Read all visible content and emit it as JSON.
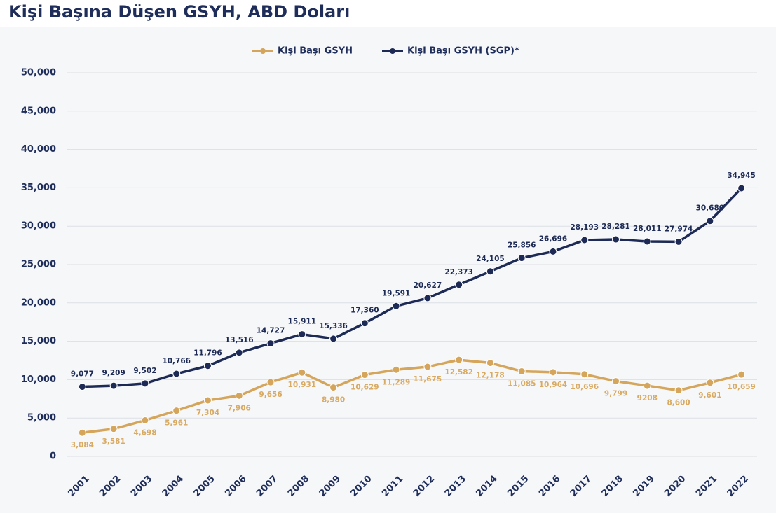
{
  "chart_data": {
    "type": "line",
    "title": "Kişi Başına Düşen GSYH, ABD Doları",
    "categories": [
      "2001",
      "2002",
      "2003",
      "2004",
      "2005",
      "2006",
      "2007",
      "2008",
      "2009",
      "2010",
      "2011",
      "2012",
      "2013",
      "2014",
      "2015",
      "2016",
      "2017",
      "2018",
      "2019",
      "2020",
      "2021",
      "2022"
    ],
    "series": [
      {
        "name": "Kişi Başı GSYH",
        "color": "#d4a55a",
        "values": [
          3084,
          3581,
          4698,
          5961,
          7304,
          7906,
          9656,
          10931,
          8980,
          10629,
          11289,
          11675,
          12582,
          12178,
          11085,
          10964,
          10696,
          9799,
          9208,
          8600,
          9601,
          10659
        ],
        "value_labels": [
          "3,084",
          "3,581",
          "4,698",
          "5,961",
          "7,304",
          "7,906",
          "9,656",
          "10,931",
          "8,980",
          "10,629",
          "11,289",
          "11,675",
          "12,582",
          "12,178",
          "11,085",
          "10,964",
          "10,696",
          "9,799",
          "9208",
          "8,600",
          "9,601",
          "10,659"
        ]
      },
      {
        "name": "Kişi Başı GSYH (SGP)*",
        "color": "#1c2a55",
        "values": [
          9077,
          9209,
          9502,
          10766,
          11796,
          13516,
          14727,
          15911,
          15336,
          17360,
          19591,
          20627,
          22373,
          24105,
          25856,
          26696,
          28193,
          28281,
          28011,
          27974,
          30680,
          34945
        ],
        "value_labels": [
          "9,077",
          "9,209",
          "9,502",
          "10,766",
          "11,796",
          "13,516",
          "14,727",
          "15,911",
          "15,336",
          "17,360",
          "19,591",
          "20,627",
          "22,373",
          "24,105",
          "25,856",
          "26,696",
          "28,193",
          "28,281",
          "28,011",
          "27,974",
          "30,680",
          "34,945"
        ]
      }
    ],
    "ylim": [
      0,
      50000
    ],
    "yticks": [
      0,
      {
        "value": 5000,
        "label": "5,000"
      },
      {
        "value": 10000,
        "label": "10,000"
      },
      {
        "value": 15000,
        "label": "15,000"
      },
      {
        "value": 20000,
        "label": "20,000"
      },
      {
        "value": 25000,
        "label": "25,000"
      },
      {
        "value": 30000,
        "label": "30,000"
      },
      {
        "value": 35000,
        "label": "35,000"
      },
      {
        "value": 40000,
        "label": "40,000"
      },
      {
        "value": 45000,
        "label": "45,000"
      },
      {
        "value": 50000,
        "label": "50,000"
      }
    ],
    "grid": true
  }
}
